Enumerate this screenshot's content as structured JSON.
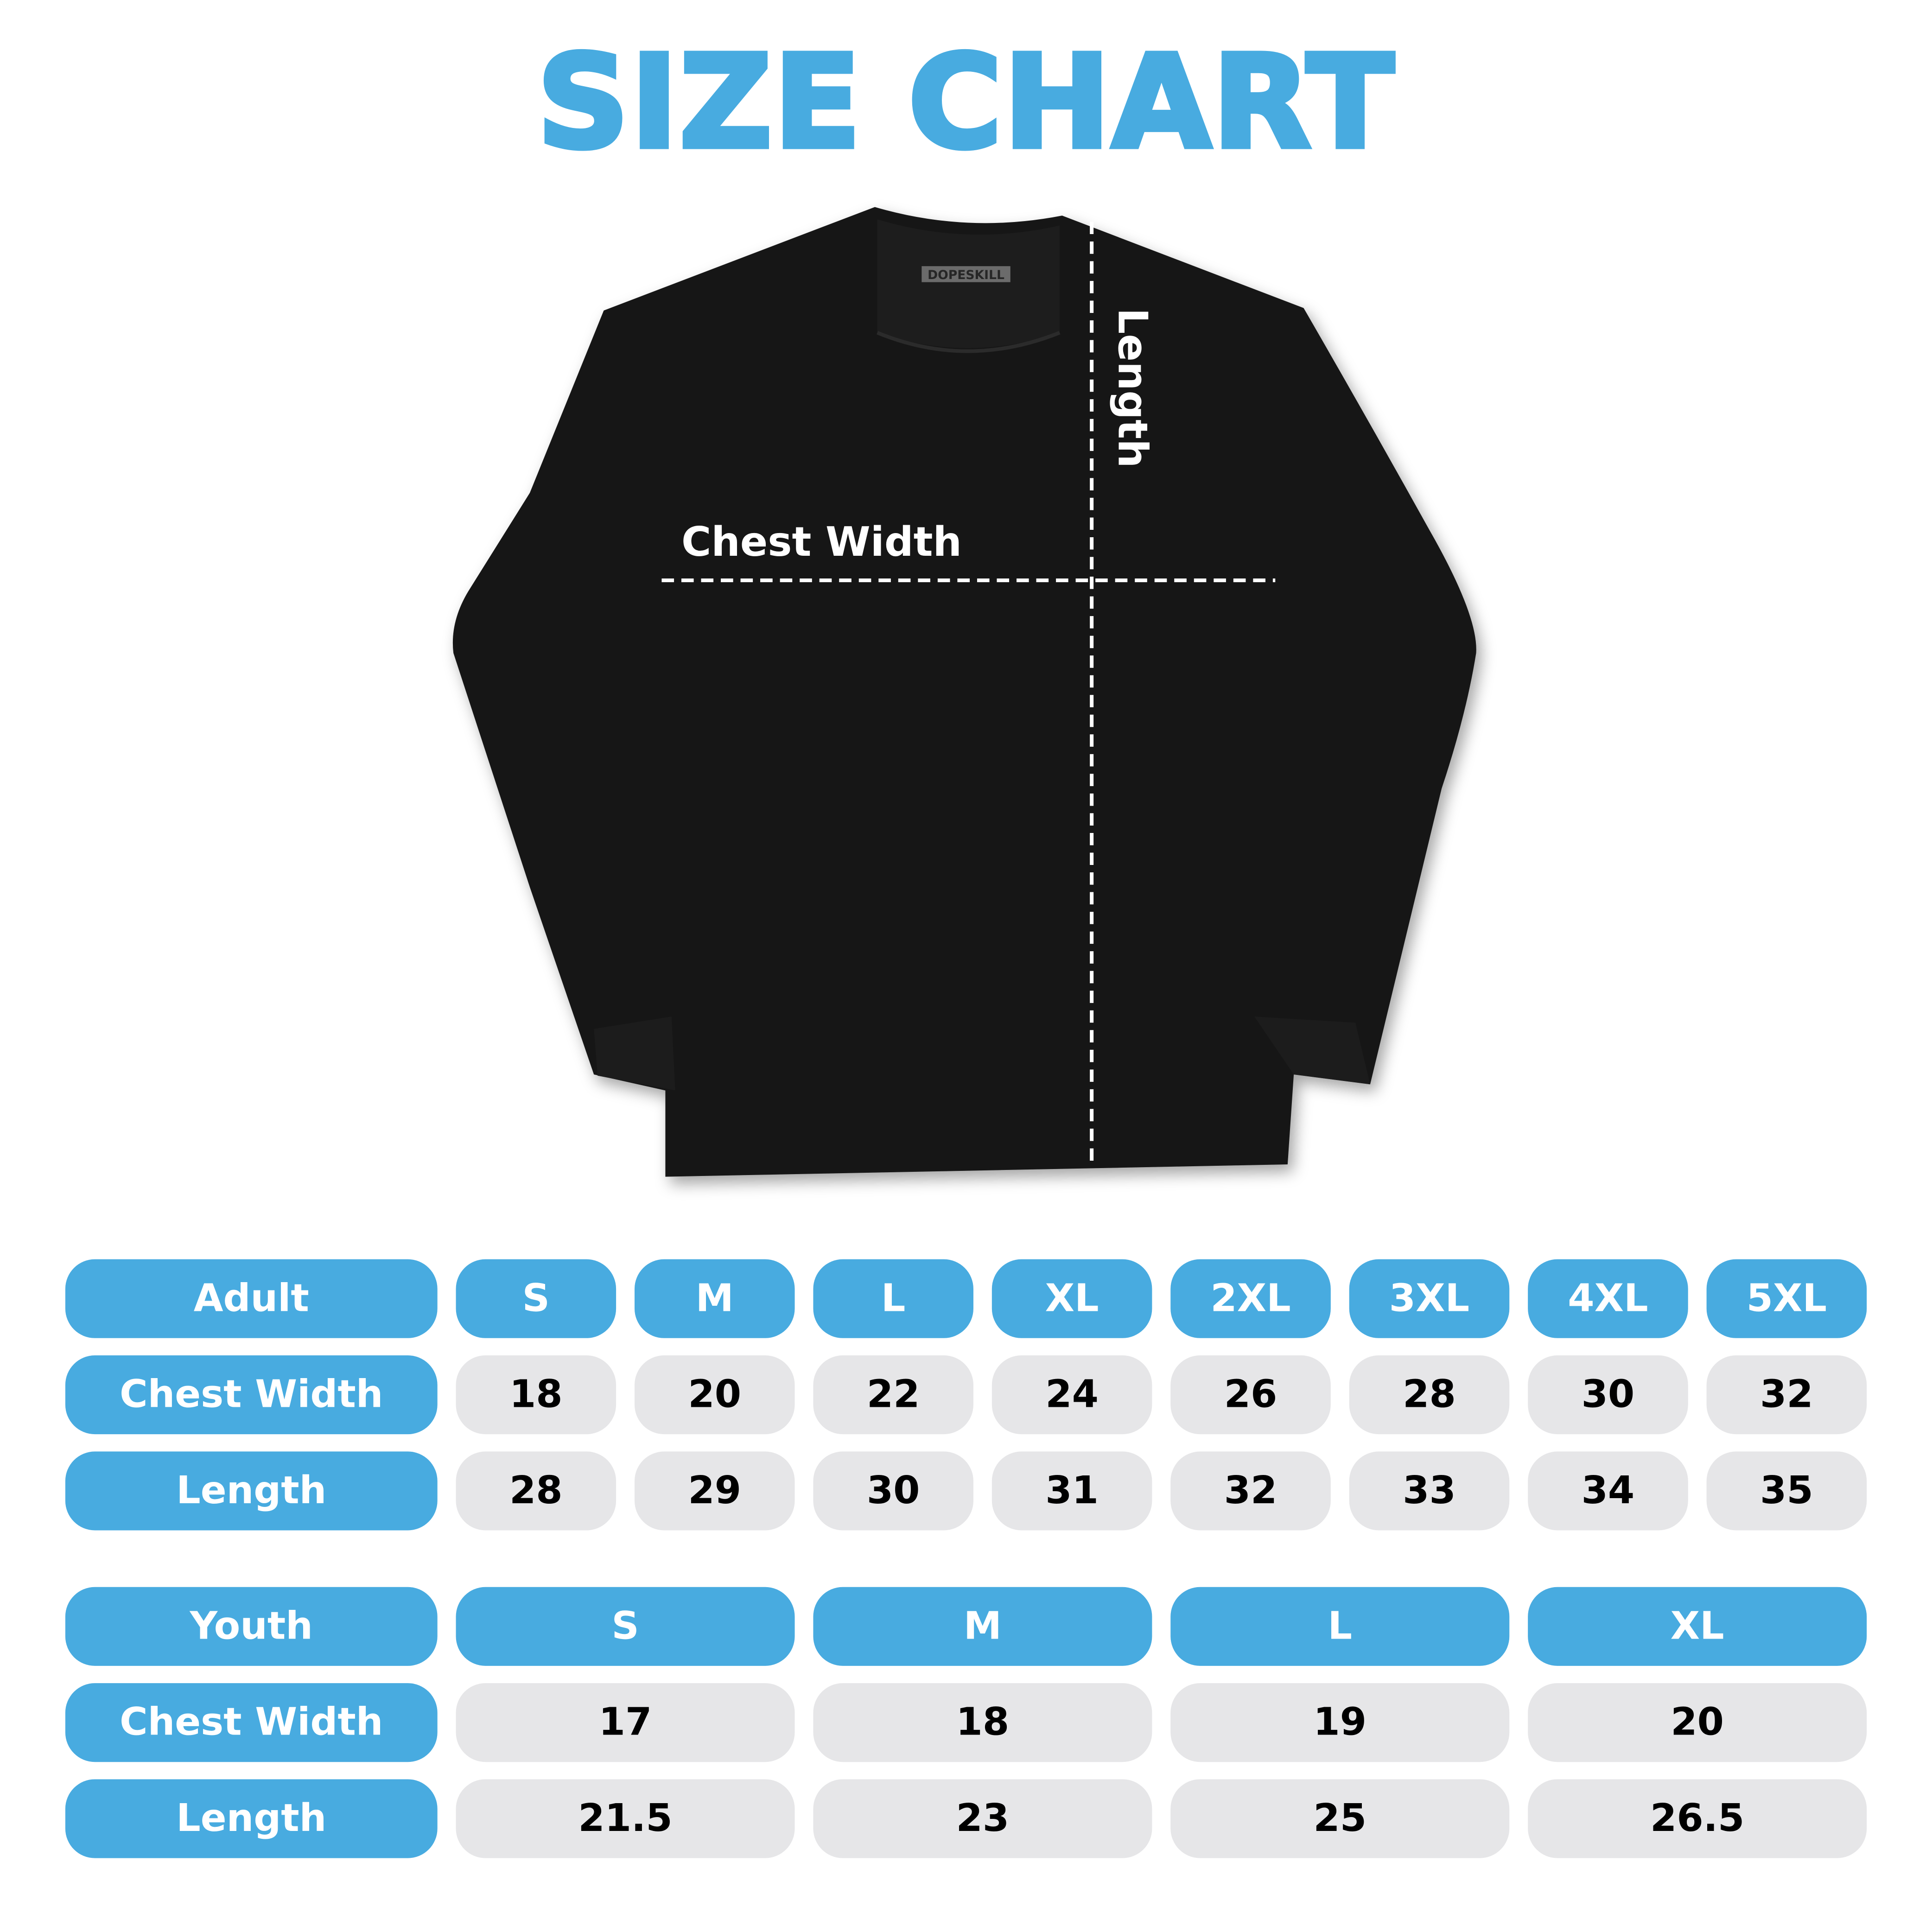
{
  "title": "SIZE CHART",
  "colors": {
    "accent": "#48ABE0",
    "cell_gray": "#E6E6E8",
    "shirt": "#111111"
  },
  "shirt": {
    "brand_label": "DOPESKILL",
    "chest_label": "Chest Width",
    "length_label": "Length"
  },
  "adult": {
    "header": "Adult",
    "sizes": [
      "S",
      "M",
      "L",
      "XL",
      "2XL",
      "3XL",
      "4XL",
      "5XL"
    ],
    "rows": [
      {
        "label": "Chest Width",
        "values": [
          "18",
          "20",
          "22",
          "24",
          "26",
          "28",
          "30",
          "32"
        ]
      },
      {
        "label": "Length",
        "values": [
          "28",
          "29",
          "30",
          "31",
          "32",
          "33",
          "34",
          "35"
        ]
      }
    ]
  },
  "youth": {
    "header": "Youth",
    "sizes": [
      "S",
      "M",
      "L",
      "XL"
    ],
    "rows": [
      {
        "label": "Chest Width",
        "values": [
          "17",
          "18",
          "19",
          "20"
        ]
      },
      {
        "label": "Length",
        "values": [
          "21.5",
          "23",
          "25",
          "26.5"
        ]
      }
    ]
  }
}
